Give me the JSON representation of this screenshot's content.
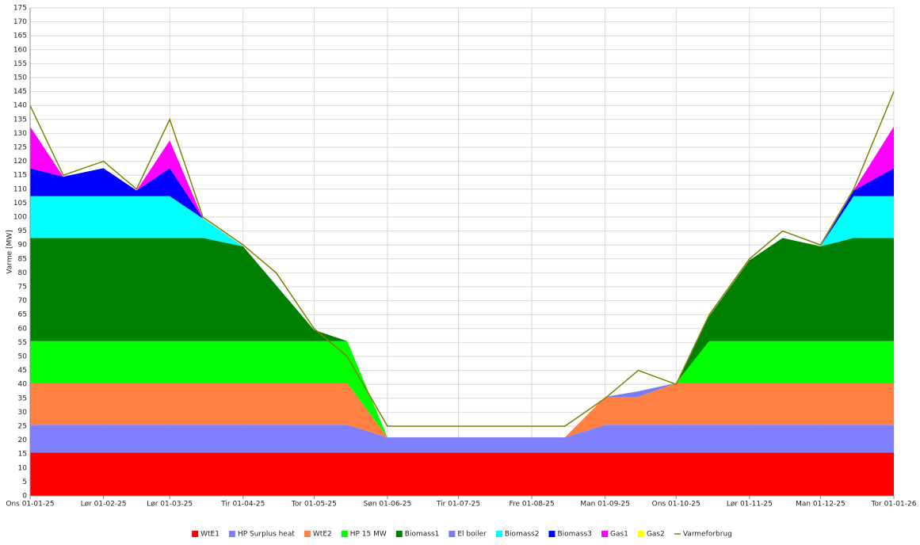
{
  "chart_data": {
    "type": "stacked_area",
    "ylabel": "Varme [MW]",
    "x": [
      "2025-01-01",
      "2025-01-15",
      "2025-02-01",
      "2025-02-15",
      "2025-03-01",
      "2025-03-15",
      "2025-04-01",
      "2025-04-15",
      "2025-05-01",
      "2025-05-15",
      "2025-06-01",
      "2025-06-15",
      "2025-07-01",
      "2025-07-15",
      "2025-08-01",
      "2025-08-15",
      "2025-09-01",
      "2025-09-15",
      "2025-10-01",
      "2025-10-15",
      "2025-11-01",
      "2025-11-15",
      "2025-12-01",
      "2025-12-15",
      "2026-01-01"
    ],
    "xlim": [
      "2025-01-01",
      "2026-01-01"
    ],
    "xticks": [
      {
        "value": "2025-01-01",
        "label": "Ons 01-01-25"
      },
      {
        "value": "2025-02-01",
        "label": "Lør 01-02-25"
      },
      {
        "value": "2025-03-01",
        "label": "Lør 01-03-25"
      },
      {
        "value": "2025-04-01",
        "label": "Tir 01-04-25"
      },
      {
        "value": "2025-05-01",
        "label": "Tor 01-05-25"
      },
      {
        "value": "2025-06-01",
        "label": "Søn 01-06-25"
      },
      {
        "value": "2025-07-01",
        "label": "Tir 01-07-25"
      },
      {
        "value": "2025-08-01",
        "label": "Fre 01-08-25"
      },
      {
        "value": "2025-09-01",
        "label": "Man 01-09-25"
      },
      {
        "value": "2025-10-01",
        "label": "Ons 01-10-25"
      },
      {
        "value": "2025-11-01",
        "label": "Lør 01-11-25"
      },
      {
        "value": "2025-12-01",
        "label": "Man 01-12-25"
      },
      {
        "value": "2026-01-01",
        "label": "Tor 01-01-26"
      }
    ],
    "ylim": [
      0,
      175
    ],
    "yticks": [
      0,
      5,
      10,
      15,
      20,
      25,
      30,
      35,
      40,
      45,
      50,
      55,
      60,
      65,
      70,
      75,
      80,
      85,
      90,
      95,
      100,
      105,
      110,
      115,
      120,
      125,
      130,
      135,
      140,
      145,
      150,
      155,
      160,
      165,
      170,
      175
    ],
    "grid": true,
    "series": [
      {
        "name": "WtE1",
        "color": "#ff0000",
        "values": [
          15.5,
          15.5,
          15.5,
          15.5,
          15.5,
          15.5,
          15.5,
          15.5,
          15.5,
          15.5,
          15.5,
          15.5,
          15.5,
          15.5,
          15.5,
          15.5,
          15.5,
          15.5,
          15.5,
          15.5,
          15.5,
          15.5,
          15.5,
          15.5,
          15.5
        ]
      },
      {
        "name": "HP Surplus heat",
        "color": "#8080ff",
        "values": [
          10,
          10,
          10,
          10,
          10,
          10,
          10,
          10,
          10,
          10,
          5.5,
          5.5,
          5.5,
          5.5,
          5.5,
          5.5,
          10,
          10,
          10,
          10,
          10,
          10,
          10,
          10,
          10
        ]
      },
      {
        "name": "WtE2",
        "color": "#ff8040",
        "values": [
          15,
          15,
          15,
          15,
          15,
          15,
          15,
          15,
          15,
          15,
          0,
          0,
          0,
          0,
          0,
          0,
          10,
          10,
          15,
          15,
          15,
          15,
          15,
          15,
          15
        ]
      },
      {
        "name": "HP 15 MW",
        "color": "#00ff00",
        "values": [
          15,
          15,
          15,
          15,
          15,
          15,
          15,
          15,
          15,
          15,
          0,
          0,
          0,
          0,
          0,
          0,
          0,
          0,
          0,
          15,
          15,
          15,
          15,
          15,
          15
        ]
      },
      {
        "name": "Biomass1",
        "color": "#008000",
        "values": [
          37,
          37,
          37,
          37,
          37,
          37,
          34,
          20,
          4,
          0,
          0,
          0,
          0,
          0,
          0,
          0,
          0,
          0,
          0,
          9,
          29,
          37,
          34,
          37,
          37
        ]
      },
      {
        "name": "El boiler",
        "color": "#7b7bf0",
        "values": [
          0,
          0,
          0,
          0,
          0,
          0,
          0,
          0,
          0,
          0,
          0,
          0,
          0,
          0,
          0,
          0,
          0,
          2,
          0,
          0,
          0,
          0,
          0,
          0,
          0
        ]
      },
      {
        "name": "Biomass2",
        "color": "#00ffff",
        "values": [
          15,
          15,
          15,
          15,
          15,
          7,
          0,
          0,
          0,
          0,
          0,
          0,
          0,
          0,
          0,
          0,
          0,
          0,
          0,
          0,
          0,
          0,
          0,
          15,
          15
        ]
      },
      {
        "name": "Biomass3",
        "color": "#0000ff",
        "values": [
          10,
          7,
          10,
          2,
          10,
          0,
          0,
          0,
          0,
          0,
          0,
          0,
          0,
          0,
          0,
          0,
          0,
          0,
          0,
          0,
          0,
          0,
          0,
          2,
          10
        ]
      },
      {
        "name": "Gas1",
        "color": "#ff00ff",
        "values": [
          15,
          0,
          0,
          0,
          10,
          0,
          0,
          0,
          0,
          0,
          0,
          0,
          0,
          0,
          0,
          0,
          0,
          0,
          0,
          0,
          0,
          0,
          0,
          0,
          15
        ]
      },
      {
        "name": "Gas2",
        "color": "#ffff00",
        "values": [
          0,
          0,
          0,
          0,
          0,
          0,
          0,
          0,
          0,
          0,
          0,
          0,
          0,
          0,
          0,
          0,
          0,
          0,
          0,
          0,
          0,
          0,
          0,
          0,
          0
        ]
      },
      {
        "name": "Varmeforbrug",
        "color": "#808000",
        "kind": "line",
        "values": [
          140,
          115,
          120,
          110,
          135,
          100,
          90,
          80,
          60,
          50,
          25,
          25,
          25,
          25,
          25,
          25,
          35,
          45,
          40,
          65,
          85,
          95,
          90,
          110,
          145
        ]
      }
    ]
  }
}
